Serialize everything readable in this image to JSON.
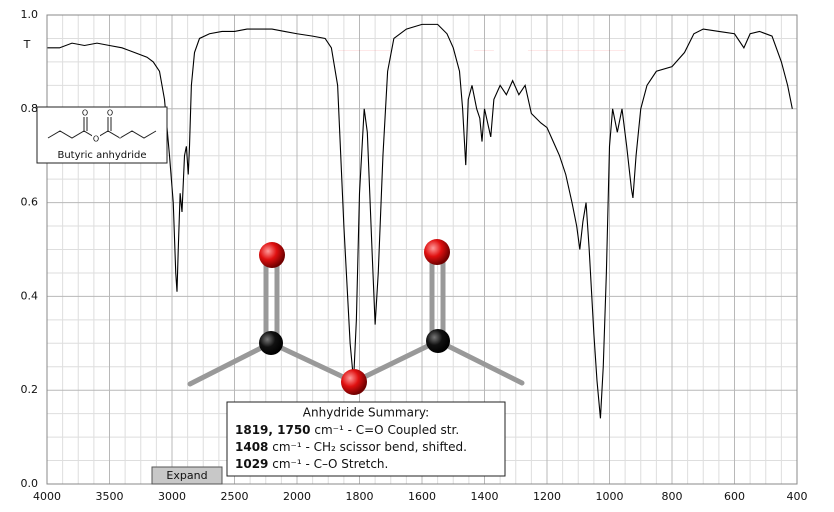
{
  "chart_data": {
    "type": "line",
    "ylabel": "T",
    "xlim": [
      4000,
      400
    ],
    "xticks": [
      4000,
      3500,
      3000,
      2500,
      2000,
      1800,
      1600,
      1400,
      1200,
      1000,
      800,
      600,
      400
    ],
    "ylim": [
      0,
      1
    ],
    "yticks": [
      {
        "value": 0,
        "label": "0.0"
      },
      0.2,
      0.4,
      0.6,
      0.8,
      {
        "value": 1,
        "label": "1.0"
      }
    ],
    "grid": true,
    "color": "#000000",
    "x": [
      4000,
      3900,
      3800,
      3700,
      3600,
      3500,
      3400,
      3300,
      3200,
      3150,
      3100,
      3060,
      3020,
      2990,
      2970,
      2960,
      2950,
      2935,
      2920,
      2900,
      2885,
      2870,
      2860,
      2845,
      2820,
      2780,
      2700,
      2600,
      2500,
      2400,
      2300,
      2200,
      2100,
      2000,
      1950,
      1910,
      1890,
      1870,
      1850,
      1830,
      1819,
      1810,
      1800,
      1785,
      1775,
      1760,
      1750,
      1740,
      1725,
      1710,
      1690,
      1650,
      1600,
      1550,
      1520,
      1500,
      1480,
      1470,
      1460,
      1452,
      1440,
      1425,
      1415,
      1408,
      1400,
      1390,
      1380,
      1370,
      1350,
      1330,
      1310,
      1290,
      1270,
      1250,
      1220,
      1200,
      1180,
      1160,
      1140,
      1120,
      1105,
      1095,
      1085,
      1075,
      1065,
      1050,
      1040,
      1029,
      1020,
      1010,
      1000,
      990,
      975,
      960,
      945,
      930,
      925,
      915,
      900,
      880,
      850,
      800,
      760,
      730,
      700,
      650,
      600,
      570,
      550,
      520,
      480,
      450,
      430,
      415
    ],
    "values": [
      0.93,
      0.93,
      0.94,
      0.935,
      0.94,
      0.935,
      0.93,
      0.92,
      0.91,
      0.9,
      0.88,
      0.82,
      0.7,
      0.6,
      0.45,
      0.41,
      0.5,
      0.62,
      0.58,
      0.7,
      0.72,
      0.66,
      0.72,
      0.85,
      0.92,
      0.95,
      0.96,
      0.965,
      0.965,
      0.97,
      0.97,
      0.97,
      0.965,
      0.96,
      0.955,
      0.95,
      0.93,
      0.85,
      0.55,
      0.3,
      0.22,
      0.35,
      0.62,
      0.8,
      0.75,
      0.5,
      0.34,
      0.45,
      0.7,
      0.88,
      0.95,
      0.97,
      0.98,
      0.98,
      0.96,
      0.93,
      0.88,
      0.8,
      0.68,
      0.82,
      0.85,
      0.8,
      0.78,
      0.73,
      0.8,
      0.77,
      0.74,
      0.82,
      0.85,
      0.83,
      0.86,
      0.83,
      0.85,
      0.79,
      0.77,
      0.76,
      0.73,
      0.7,
      0.66,
      0.6,
      0.55,
      0.5,
      0.56,
      0.6,
      0.5,
      0.32,
      0.22,
      0.14,
      0.25,
      0.45,
      0.72,
      0.8,
      0.75,
      0.8,
      0.72,
      0.63,
      0.61,
      0.7,
      0.8,
      0.85,
      0.88,
      0.89,
      0.92,
      0.96,
      0.97,
      0.965,
      0.96,
      0.93,
      0.96,
      0.965,
      0.955,
      0.9,
      0.85,
      0.8
    ],
    "highlights": [
      {
        "range": [
          1869,
          1702
        ],
        "top": 0.925,
        "color": "#ee1111"
      },
      {
        "range": [
          1434,
          1370
        ],
        "top": 0.925,
        "color": "#ee1111"
      },
      {
        "range": [
          1261,
          950
        ],
        "top": 0.925,
        "color": "#ee1111"
      }
    ],
    "structure_label": "Butyric anhydride",
    "summary": {
      "title": "Anhydride Summary:",
      "lines": [
        {
          "bold": "1819, 1750",
          "text": " cm⁻¹ - C=O Coupled str."
        },
        {
          "bold": "1408",
          "text": " cm⁻¹ - CH₂ scissor bend, shifted."
        },
        {
          "bold": "1029",
          "text": " cm⁻¹ - C–O Stretch."
        }
      ]
    },
    "button": "Expand"
  }
}
